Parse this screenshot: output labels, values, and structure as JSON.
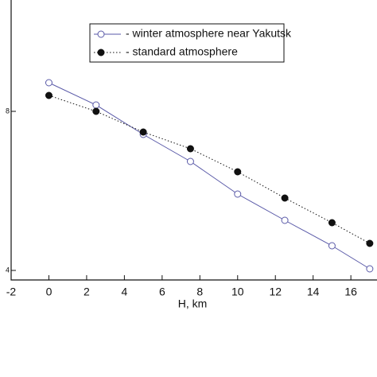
{
  "chart_data": {
    "type": "line",
    "x_label": "H, km",
    "xlim": [
      -2,
      17.3
    ],
    "xticks": [
      -2,
      0,
      2,
      4,
      6,
      8,
      10,
      12,
      14,
      16
    ],
    "ylim": [
      3.76,
      10.56
    ],
    "yticks": [
      4,
      8
    ],
    "series": [
      {
        "name": "- winter atmosphere near Yakutsk",
        "color": "#5a5aa8",
        "marker": "hollow",
        "line": "solid",
        "x": [
          0,
          2.5,
          5,
          7.5,
          10,
          12.5,
          15,
          17
        ],
        "values": [
          8.72,
          8.16,
          7.42,
          6.74,
          5.92,
          5.26,
          4.62,
          4.04
        ]
      },
      {
        "name": "- standard atmosphere",
        "color": "#111111",
        "marker": "filled",
        "line": "dotted",
        "x": [
          0,
          2.5,
          5,
          7.5,
          10,
          12.5,
          15,
          17
        ],
        "values": [
          8.4,
          8.0,
          7.48,
          7.06,
          6.48,
          5.82,
          5.2,
          4.68
        ]
      }
    ]
  }
}
